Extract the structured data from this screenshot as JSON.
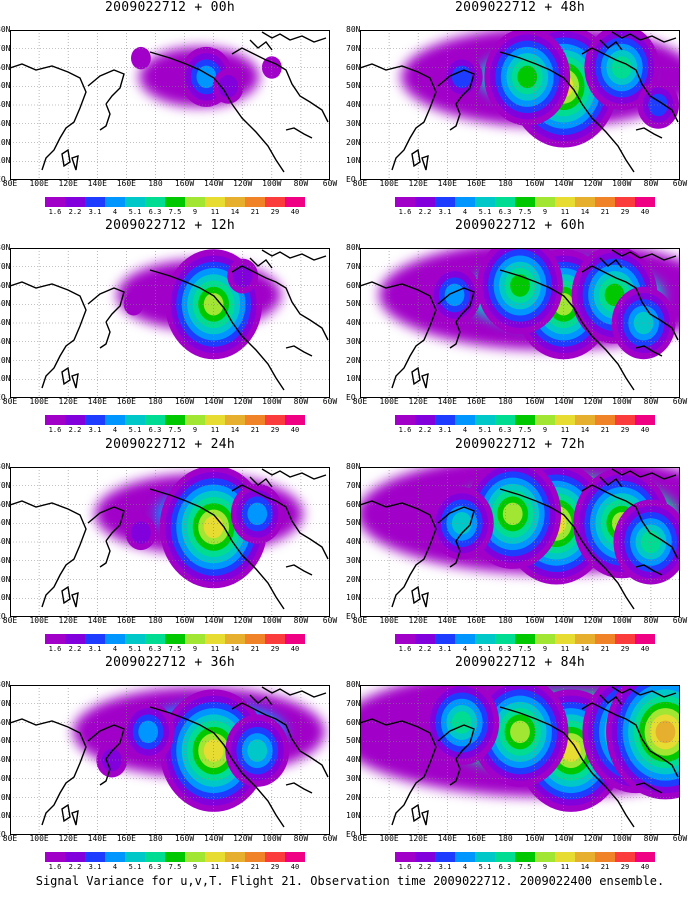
{
  "caption": "Signal Variance for u,v,T. Flight 21. Observation time 2009022712. 2009022400 ensemble.",
  "lat_labels": [
    "80N",
    "70N",
    "60N",
    "50N",
    "40N",
    "30N",
    "20N",
    "10N",
    "EQ"
  ],
  "lon_labels": [
    "80E",
    "100E",
    "120E",
    "140E",
    "160E",
    "180",
    "160W",
    "140W",
    "120W",
    "100W",
    "80W",
    "60W"
  ],
  "colorbar": {
    "levels": [
      "1.6",
      "2.2",
      "3.1",
      "4",
      "5.1",
      "6.3",
      "7.5",
      "9",
      "11",
      "14",
      "21",
      "29",
      "40"
    ],
    "colors": [
      "#a000c8",
      "#8200dc",
      "#1e3cff",
      "#0096ff",
      "#00c8c8",
      "#00dc91",
      "#00c800",
      "#a0e632",
      "#e6dc32",
      "#e6af2d",
      "#f08228",
      "#fa3c3c",
      "#f00082"
    ]
  },
  "panels": [
    {
      "id": "p00",
      "title": "2009022712 + 00h",
      "intensity": 0,
      "blobs": [
        {
          "lon": -145,
          "lat": 55,
          "level": 4
        },
        {
          "lon": -130,
          "lat": 50,
          "level": 2
        },
        {
          "lon": 170,
          "lat": 65,
          "level": 1
        },
        {
          "lon": -100,
          "lat": 60,
          "level": 1
        }
      ]
    },
    {
      "id": "p48",
      "title": "2009022712 + 48h",
      "intensity": 4,
      "blobs": [
        {
          "lon": -140,
          "lat": 50,
          "level": 9
        },
        {
          "lon": -165,
          "lat": 55,
          "level": 7
        },
        {
          "lon": -100,
          "lat": 60,
          "level": 6
        },
        {
          "lon": 150,
          "lat": 55,
          "level": 3
        },
        {
          "lon": -75,
          "lat": 40,
          "level": 3
        }
      ]
    },
    {
      "id": "p12",
      "title": "2009022712 + 12h",
      "intensity": 1,
      "blobs": [
        {
          "lon": -140,
          "lat": 50,
          "level": 8
        },
        {
          "lon": -120,
          "lat": 65,
          "level": 2
        },
        {
          "lon": 165,
          "lat": 50,
          "level": 1
        }
      ]
    },
    {
      "id": "p60",
      "title": "2009022712 + 60h",
      "intensity": 5,
      "blobs": [
        {
          "lon": -140,
          "lat": 50,
          "level": 8
        },
        {
          "lon": -170,
          "lat": 60,
          "level": 7
        },
        {
          "lon": -105,
          "lat": 55,
          "level": 7
        },
        {
          "lon": -85,
          "lat": 40,
          "level": 5
        },
        {
          "lon": 145,
          "lat": 55,
          "level": 4
        }
      ]
    },
    {
      "id": "p24",
      "title": "2009022712 + 24h",
      "intensity": 2,
      "blobs": [
        {
          "lon": -140,
          "lat": 48,
          "level": 9
        },
        {
          "lon": -110,
          "lat": 55,
          "level": 4
        },
        {
          "lon": 170,
          "lat": 45,
          "level": 2
        }
      ]
    },
    {
      "id": "p72",
      "title": "2009022712 + 72h",
      "intensity": 6,
      "blobs": [
        {
          "lon": -145,
          "lat": 50,
          "level": 9
        },
        {
          "lon": -175,
          "lat": 55,
          "level": 8
        },
        {
          "lon": -100,
          "lat": 50,
          "level": 8
        },
        {
          "lon": 150,
          "lat": 50,
          "level": 5
        },
        {
          "lon": -80,
          "lat": 40,
          "level": 6
        }
      ]
    },
    {
      "id": "p36",
      "title": "2009022712 + 36h",
      "intensity": 3,
      "blobs": [
        {
          "lon": -140,
          "lat": 45,
          "level": 9
        },
        {
          "lon": -110,
          "lat": 45,
          "level": 5
        },
        {
          "lon": 175,
          "lat": 55,
          "level": 4
        },
        {
          "lon": 150,
          "lat": 40,
          "level": 2
        }
      ]
    },
    {
      "id": "p84",
      "title": "2009022712 + 84h",
      "intensity": 7,
      "blobs": [
        {
          "lon": -135,
          "lat": 45,
          "level": 9
        },
        {
          "lon": -170,
          "lat": 55,
          "level": 8
        },
        {
          "lon": -90,
          "lat": 55,
          "level": 9
        },
        {
          "lon": -70,
          "lat": 55,
          "level": 10
        },
        {
          "lon": 150,
          "lat": 60,
          "level": 6
        }
      ]
    }
  ]
}
